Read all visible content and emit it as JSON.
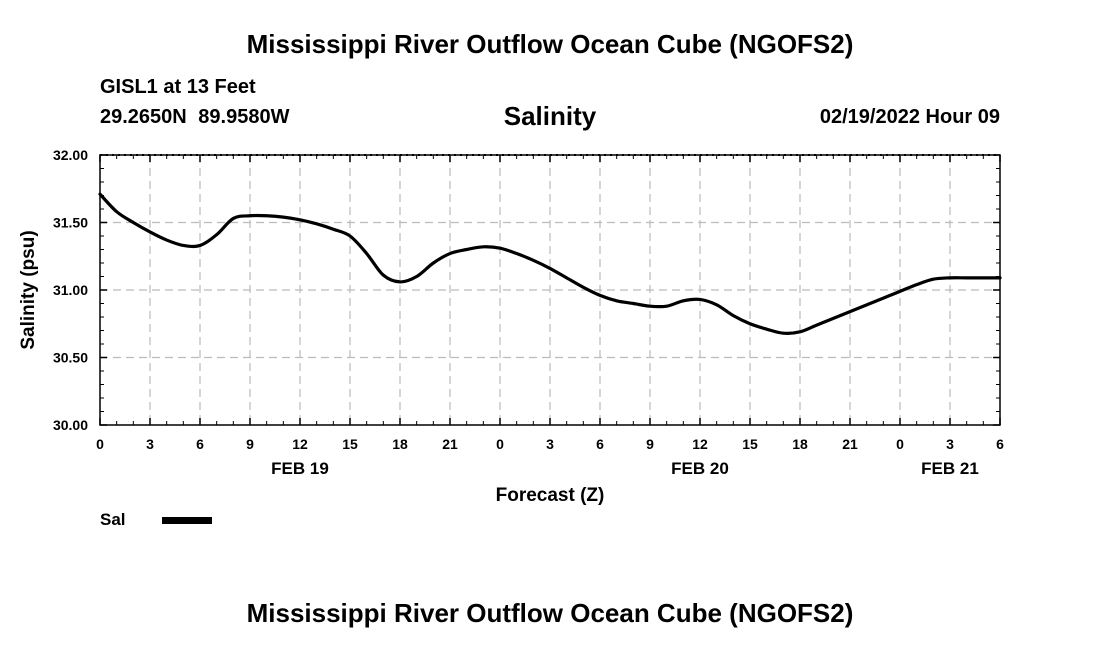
{
  "header": {
    "title": "Mississippi River Outflow Ocean Cube (NGOFS2)",
    "station": "GISL1 at 13 Feet",
    "coordinates": "29.2650N  89.9580W",
    "subtitle": "Salinity",
    "datetime": "02/19/2022 Hour 09"
  },
  "footer": {
    "title": "Mississippi River Outflow Ocean Cube (NGOFS2)"
  },
  "legend": {
    "label": "Sal",
    "color": "#000000"
  },
  "chart_data": {
    "type": "line",
    "title": "Salinity",
    "xlabel": "Forecast (Z)",
    "ylabel": "Salinity (psu)",
    "xlim": [
      0,
      54
    ],
    "ylim": [
      30.0,
      32.0
    ],
    "grid": true,
    "legend_position": "bottom-left",
    "x_ticks": [
      0,
      3,
      6,
      9,
      12,
      15,
      18,
      21,
      24,
      27,
      30,
      33,
      36,
      39,
      42,
      45,
      48,
      51,
      54
    ],
    "x_tick_labels": [
      "0",
      "3",
      "6",
      "9",
      "12",
      "15",
      "18",
      "21",
      "0",
      "3",
      "6",
      "9",
      "12",
      "15",
      "18",
      "21",
      "0",
      "3",
      "6"
    ],
    "date_labels": [
      {
        "x": 12,
        "label": "FEB 19"
      },
      {
        "x": 36,
        "label": "FEB 20"
      },
      {
        "x": 51,
        "label": "FEB 21"
      }
    ],
    "y_ticks": [
      30.0,
      30.5,
      31.0,
      31.5,
      32.0
    ],
    "y_tick_labels": [
      "30.00",
      "30.50",
      "31.00",
      "31.50",
      "32.00"
    ],
    "series": [
      {
        "name": "Sal",
        "x": [
          0,
          1,
          2,
          3,
          4,
          5,
          6,
          7,
          8,
          9,
          10,
          11,
          12,
          13,
          14,
          15,
          16,
          17,
          18,
          19,
          20,
          21,
          22,
          23,
          24,
          25,
          26,
          27,
          28,
          29,
          30,
          31,
          32,
          33,
          34,
          35,
          36,
          37,
          38,
          39,
          40,
          41,
          42,
          43,
          44,
          45,
          46,
          47,
          48,
          49,
          50,
          51,
          52,
          53,
          54
        ],
        "values": [
          31.71,
          31.58,
          31.5,
          31.43,
          31.37,
          31.33,
          31.33,
          31.41,
          31.53,
          31.55,
          31.55,
          31.54,
          31.52,
          31.49,
          31.45,
          31.4,
          31.27,
          31.11,
          31.06,
          31.1,
          31.2,
          31.27,
          31.3,
          31.32,
          31.31,
          31.27,
          31.22,
          31.16,
          31.09,
          31.02,
          30.96,
          30.92,
          30.9,
          30.88,
          30.88,
          30.92,
          30.93,
          30.89,
          30.81,
          30.75,
          30.71,
          30.68,
          30.69,
          30.74,
          30.79,
          30.84,
          30.89,
          30.94,
          30.99,
          31.04,
          31.08,
          31.09,
          31.09,
          31.09,
          31.09
        ]
      }
    ]
  }
}
